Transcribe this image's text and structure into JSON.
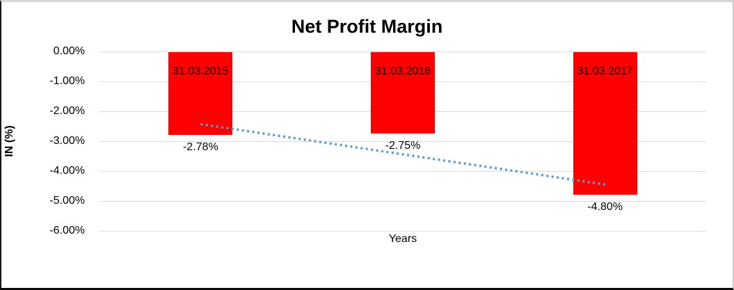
{
  "window": {
    "background": "#FFFFFF",
    "frame_border_dark": "#0B0B0B",
    "frame_border_light": "#D5D5D5"
  },
  "chart_data": {
    "type": "bar",
    "title": "Net Profit Margin",
    "categories": [
      "31.03.2015",
      "31.03.2016",
      "31.03.2017"
    ],
    "values": [
      -2.78,
      -2.75,
      -4.8
    ],
    "value_labels": [
      "-2.78%",
      "-2.75%",
      "-4.80%"
    ],
    "xlabel": "Years",
    "ylabel": "IN (%)",
    "ylim": [
      -6,
      0
    ],
    "y_ticks": [
      "0.00%",
      "-1.00%",
      "-2.00%",
      "-3.00%",
      "-4.00%",
      "-5.00%",
      "-6.00%"
    ],
    "y_tick_values": [
      0,
      -1,
      -2,
      -3,
      -4,
      -5,
      -6
    ],
    "grid": true,
    "legend": "none",
    "bar_color": "#FF0000",
    "gridline_color": "#D9D9D9",
    "text_color": "#000000",
    "trendline": {
      "kind": "linear",
      "style": "dotted",
      "color": "#5B9BD5",
      "start_value_pct": -2.43,
      "end_value_pct": -4.45
    }
  }
}
